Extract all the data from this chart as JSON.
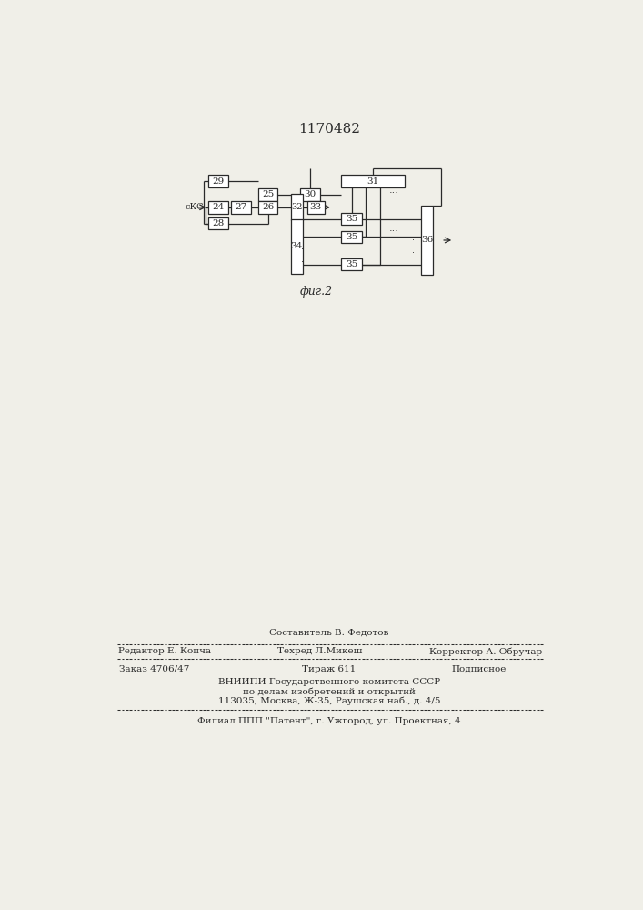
{
  "title": "1170482",
  "fig_label": "фиг.2",
  "background_color": "#f0efe8",
  "line_color": "#2a2a2a",
  "box_color": "#ffffff",
  "text_color": "#2a2a2a",
  "footer": {
    "line1_left": "Редактор Е. Копча",
    "line1_center_top": "Составитель В. Федотов",
    "line1_center": "Техред Л.Микеш",
    "line1_right": "Корректор А. Обручар",
    "line2_left": "Заказ 4706/47",
    "line2_center": "Тираж 611",
    "line2_right": "Подписное",
    "line3": "ВНИИПИ Государственного комитета СССР",
    "line4": "по делам изобретений и открытий",
    "line5": "113035, Москва, Ж-35, Раушская наб., д. 4/5",
    "line6": "Филиал ППП \"Патент\", г. Ужгород, ул. Проектная, 4"
  }
}
